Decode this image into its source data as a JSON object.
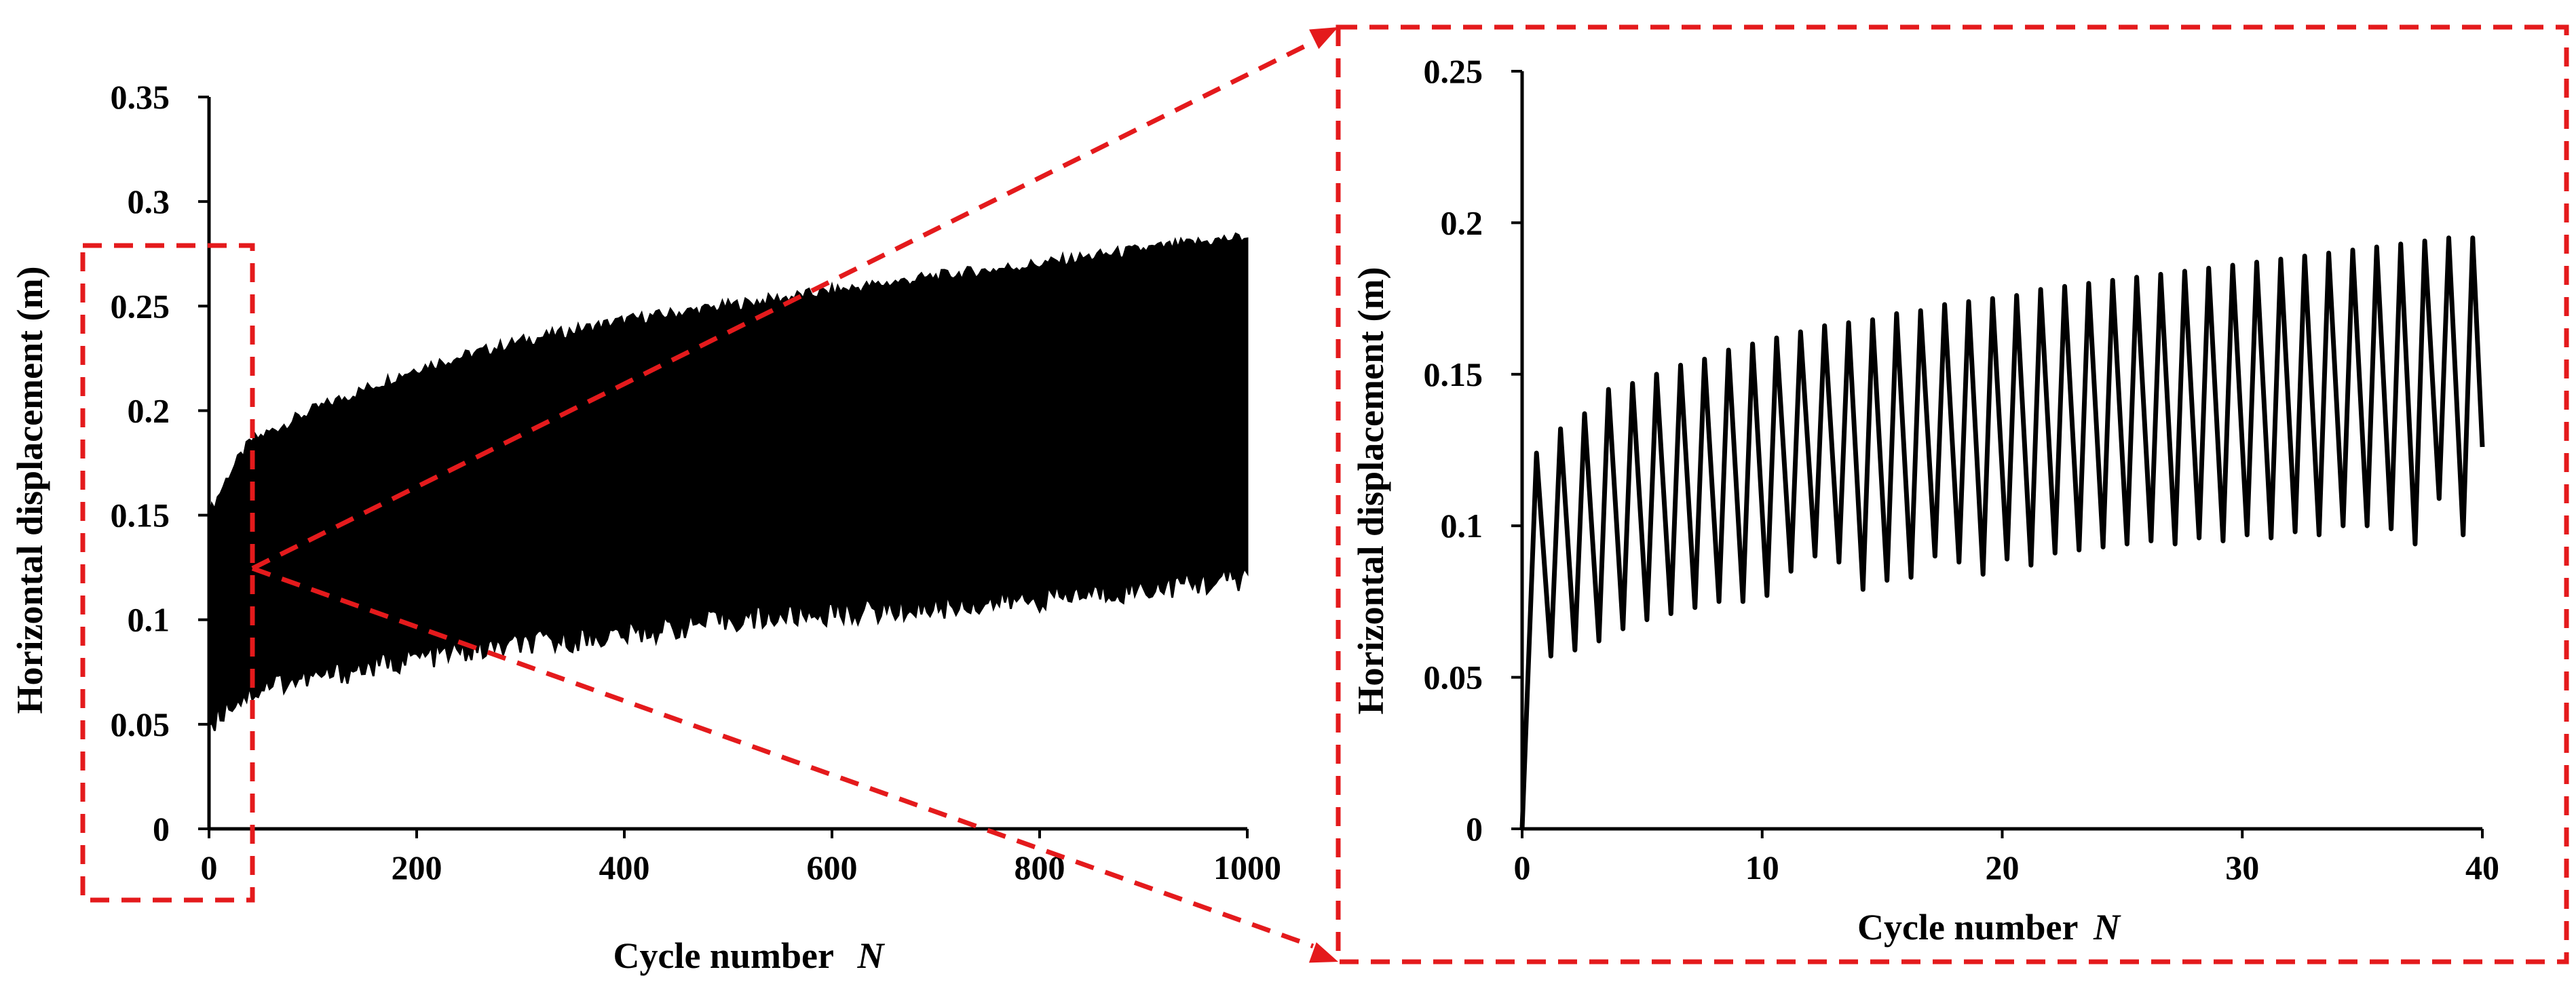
{
  "colors": {
    "series": "#000000",
    "highlight": "#e41a1c",
    "background": "#ffffff"
  },
  "chart_data": [
    {
      "type": "line",
      "title": "",
      "xlabel": "Cycle number",
      "xlabel_symbol": "N",
      "ylabel": "Horizontal  displacement (m)",
      "xlim": [
        0,
        1000
      ],
      "ylim": [
        0,
        0.35
      ],
      "x_ticks": [
        "0",
        "200",
        "400",
        "600",
        "800",
        "1000"
      ],
      "y_ticks": [
        "0",
        "0.05",
        "0.1",
        "0.15",
        "0.2",
        "0.25",
        "0.3",
        "0.35"
      ],
      "grid": false,
      "legend": "none",
      "series": [
        {
          "envelope_upper": {
            "x": [
              0,
              10,
              20,
              40,
              60,
              100,
              200,
              300,
              400,
              500,
              600,
              700,
              800,
              900,
              1000
            ],
            "y": [
              0.15,
              0.16,
              0.17,
              0.185,
              0.19,
              0.2,
              0.22,
              0.233,
              0.243,
              0.25,
              0.257,
              0.264,
              0.27,
              0.277,
              0.283
            ]
          },
          "envelope_lower": {
            "x": [
              0,
              10,
              20,
              40,
              60,
              100,
              200,
              300,
              400,
              500,
              600,
              700,
              800,
              900,
              1000
            ],
            "y": [
              0.05,
              0.055,
              0.06,
              0.065,
              0.07,
              0.072,
              0.082,
              0.088,
              0.093,
              0.1,
              0.103,
              0.106,
              0.11,
              0.115,
              0.12
            ]
          }
        }
      ]
    },
    {
      "type": "line",
      "title": "",
      "xlabel": "Cycle number",
      "xlabel_symbol": "N",
      "ylabel": "Horizontal  displacement (m)",
      "xlim": [
        0,
        40
      ],
      "ylim": [
        0,
        0.25
      ],
      "x_ticks": [
        "0",
        "10",
        "20",
        "30",
        "40"
      ],
      "y_ticks": [
        "0",
        "0.05",
        "0.1",
        "0.15",
        "0.2",
        "0.25"
      ],
      "grid": false,
      "legend": "none",
      "series": [
        {
          "start": [
            0,
            0
          ],
          "end": [
            40,
            0.126
          ],
          "cycles": [
            {
              "peak": 0.124,
              "trough": 0.057
            },
            {
              "peak": 0.132,
              "trough": 0.059
            },
            {
              "peak": 0.137,
              "trough": 0.062
            },
            {
              "peak": 0.145,
              "trough": 0.066
            },
            {
              "peak": 0.147,
              "trough": 0.069
            },
            {
              "peak": 0.15,
              "trough": 0.071
            },
            {
              "peak": 0.153,
              "trough": 0.073
            },
            {
              "peak": 0.155,
              "trough": 0.075
            },
            {
              "peak": 0.158,
              "trough": 0.075
            },
            {
              "peak": 0.16,
              "trough": 0.077
            },
            {
              "peak": 0.162,
              "trough": 0.085
            },
            {
              "peak": 0.164,
              "trough": 0.09
            },
            {
              "peak": 0.166,
              "trough": 0.088
            },
            {
              "peak": 0.167,
              "trough": 0.079
            },
            {
              "peak": 0.168,
              "trough": 0.082
            },
            {
              "peak": 0.17,
              "trough": 0.083
            },
            {
              "peak": 0.171,
              "trough": 0.09
            },
            {
              "peak": 0.173,
              "trough": 0.088
            },
            {
              "peak": 0.174,
              "trough": 0.084
            },
            {
              "peak": 0.175,
              "trough": 0.089
            },
            {
              "peak": 0.176,
              "trough": 0.087
            },
            {
              "peak": 0.178,
              "trough": 0.091
            },
            {
              "peak": 0.179,
              "trough": 0.092
            },
            {
              "peak": 0.18,
              "trough": 0.093
            },
            {
              "peak": 0.181,
              "trough": 0.094
            },
            {
              "peak": 0.182,
              "trough": 0.095
            },
            {
              "peak": 0.183,
              "trough": 0.094
            },
            {
              "peak": 0.184,
              "trough": 0.096
            },
            {
              "peak": 0.185,
              "trough": 0.095
            },
            {
              "peak": 0.186,
              "trough": 0.097
            },
            {
              "peak": 0.187,
              "trough": 0.096
            },
            {
              "peak": 0.188,
              "trough": 0.098
            },
            {
              "peak": 0.189,
              "trough": 0.097
            },
            {
              "peak": 0.19,
              "trough": 0.1
            },
            {
              "peak": 0.191,
              "trough": 0.1
            },
            {
              "peak": 0.192,
              "trough": 0.099
            },
            {
              "peak": 0.193,
              "trough": 0.094
            },
            {
              "peak": 0.194,
              "trough": 0.109
            },
            {
              "peak": 0.195,
              "trough": 0.097
            },
            {
              "peak": 0.195,
              "trough": 0.126
            }
          ]
        }
      ]
    }
  ]
}
